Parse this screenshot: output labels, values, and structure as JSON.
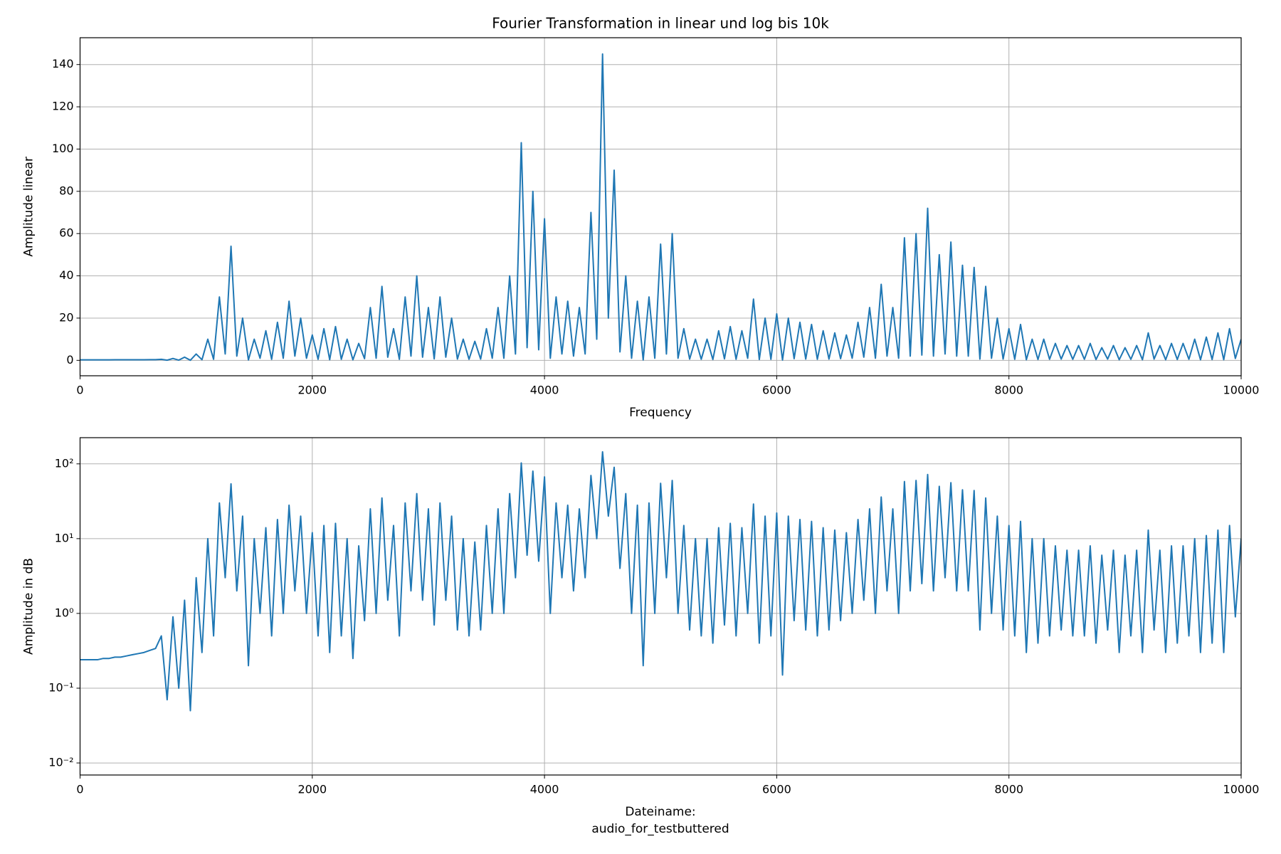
{
  "chart_data": [
    {
      "type": "line",
      "title": "Fourier Transformation in linear und log bis 10k",
      "xlabel": "Frequency",
      "ylabel": "Amplitude linear",
      "color": "#1f77b4",
      "grid": true,
      "yscale": "linear",
      "xlim": [
        0,
        10000
      ],
      "xticks": [
        0,
        2000,
        4000,
        6000,
        8000,
        10000
      ],
      "ylim": [
        -7.3,
        152.7
      ],
      "yticks": [
        0,
        20,
        40,
        60,
        80,
        100,
        120,
        140
      ],
      "x": [
        0,
        50,
        100,
        150,
        200,
        250,
        300,
        350,
        400,
        450,
        500,
        550,
        600,
        650,
        700,
        750,
        800,
        850,
        900,
        950,
        1000,
        1050,
        1100,
        1150,
        1200,
        1250,
        1300,
        1350,
        1400,
        1450,
        1500,
        1550,
        1600,
        1650,
        1700,
        1750,
        1800,
        1850,
        1900,
        1950,
        2000,
        2050,
        2100,
        2150,
        2200,
        2250,
        2300,
        2350,
        2400,
        2450,
        2500,
        2550,
        2600,
        2650,
        2700,
        2750,
        2800,
        2850,
        2900,
        2950,
        3000,
        3050,
        3100,
        3150,
        3200,
        3250,
        3300,
        3350,
        3400,
        3450,
        3500,
        3550,
        3600,
        3650,
        3700,
        3750,
        3800,
        3850,
        3900,
        3950,
        4000,
        4050,
        4100,
        4150,
        4200,
        4250,
        4300,
        4350,
        4400,
        4450,
        4500,
        4550,
        4600,
        4650,
        4700,
        4750,
        4800,
        4850,
        4900,
        4950,
        5000,
        5050,
        5100,
        5150,
        5200,
        5250,
        5300,
        5350,
        5400,
        5450,
        5500,
        5550,
        5600,
        5650,
        5700,
        5750,
        5800,
        5850,
        5900,
        5950,
        6000,
        6050,
        6100,
        6150,
        6200,
        6250,
        6300,
        6350,
        6400,
        6450,
        6500,
        6550,
        6600,
        6650,
        6700,
        6750,
        6800,
        6850,
        6900,
        6950,
        7000,
        7050,
        7100,
        7150,
        7200,
        7250,
        7300,
        7350,
        7400,
        7450,
        7500,
        7550,
        7600,
        7650,
        7700,
        7750,
        7800,
        7850,
        7900,
        7950,
        8000,
        8050,
        8100,
        8150,
        8200,
        8250,
        8300,
        8350,
        8400,
        8450,
        8500,
        8550,
        8600,
        8650,
        8700,
        8750,
        8800,
        8850,
        8900,
        8950,
        9000,
        9050,
        9100,
        9150,
        9200,
        9250,
        9300,
        9350,
        9400,
        9450,
        9500,
        9550,
        9600,
        9650,
        9700,
        9750,
        9800,
        9850,
        9900,
        9950,
        10000
      ],
      "values": [
        0.24,
        0.24,
        0.24,
        0.24,
        0.25,
        0.25,
        0.26,
        0.26,
        0.27,
        0.28,
        0.29,
        0.3,
        0.32,
        0.34,
        0.5,
        0.07,
        0.9,
        0.1,
        1.5,
        0.05,
        3,
        0.3,
        10,
        0.5,
        30,
        3,
        54,
        2,
        20,
        0.2,
        10,
        1,
        14,
        0.5,
        18,
        1,
        28,
        2,
        20,
        1,
        12,
        0.5,
        15,
        0.3,
        16,
        0.5,
        10,
        0.25,
        8,
        0.8,
        25,
        1,
        35,
        1.5,
        15,
        0.5,
        30,
        2,
        40,
        1.5,
        25,
        0.7,
        30,
        1.5,
        20,
        0.6,
        10,
        0.5,
        9,
        0.6,
        15,
        1,
        25,
        1,
        40,
        3,
        103,
        6,
        80,
        5,
        67,
        1,
        30,
        3,
        28,
        2,
        25,
        3,
        70,
        10,
        145,
        20,
        90,
        4,
        40,
        1,
        28,
        0.2,
        30,
        1,
        55,
        3,
        60,
        1,
        15,
        0.6,
        10,
        0.5,
        10,
        0.4,
        14,
        0.7,
        16,
        0.5,
        14,
        1,
        29,
        0.4,
        20,
        0.5,
        22,
        0.15,
        20,
        0.8,
        18,
        0.6,
        17,
        0.5,
        14,
        0.6,
        13,
        0.8,
        12,
        1,
        18,
        1.5,
        25,
        1,
        36,
        2,
        25,
        1,
        58,
        2,
        60,
        2.5,
        72,
        2,
        50,
        3,
        56,
        2,
        45,
        2,
        44,
        0.6,
        35,
        1,
        20,
        0.6,
        15,
        0.5,
        17,
        0.3,
        10,
        0.4,
        10,
        0.5,
        8,
        0.6,
        7,
        0.5,
        7,
        0.5,
        8,
        0.4,
        6,
        0.6,
        7,
        0.3,
        6,
        0.5,
        7,
        0.3,
        13,
        0.6,
        7,
        0.3,
        8,
        0.4,
        8,
        0.5,
        10,
        0.3,
        11,
        0.4,
        13,
        0.3,
        15,
        0.9,
        10
      ]
    },
    {
      "type": "line",
      "xlabel": "Dateiname:\naudio_for_testbuttered",
      "ylabel": "Amplitude in dB",
      "color": "#1f77b4",
      "grid": true,
      "yscale": "log",
      "xlim": [
        0,
        10000
      ],
      "xticks": [
        0,
        2000,
        4000,
        6000,
        8000,
        10000
      ],
      "ylim": [
        0.0069,
        224
      ],
      "yticks": [
        {
          "value": 0.01,
          "label": "10⁻²"
        },
        {
          "value": 0.1,
          "label": "10⁻¹"
        },
        {
          "value": 1,
          "label": "10⁰"
        },
        {
          "value": 10,
          "label": "10¹"
        },
        {
          "value": 100,
          "label": "10²"
        }
      ],
      "x": [
        0,
        50,
        100,
        150,
        200,
        250,
        300,
        350,
        400,
        450,
        500,
        550,
        600,
        650,
        700,
        750,
        800,
        850,
        900,
        950,
        1000,
        1050,
        1100,
        1150,
        1200,
        1250,
        1300,
        1350,
        1400,
        1450,
        1500,
        1550,
        1600,
        1650,
        1700,
        1750,
        1800,
        1850,
        1900,
        1950,
        2000,
        2050,
        2100,
        2150,
        2200,
        2250,
        2300,
        2350,
        2400,
        2450,
        2500,
        2550,
        2600,
        2650,
        2700,
        2750,
        2800,
        2850,
        2900,
        2950,
        3000,
        3050,
        3100,
        3150,
        3200,
        3250,
        3300,
        3350,
        3400,
        3450,
        3500,
        3550,
        3600,
        3650,
        3700,
        3750,
        3800,
        3850,
        3900,
        3950,
        4000,
        4050,
        4100,
        4150,
        4200,
        4250,
        4300,
        4350,
        4400,
        4450,
        4500,
        4550,
        4600,
        4650,
        4700,
        4750,
        4800,
        4850,
        4900,
        4950,
        5000,
        5050,
        5100,
        5150,
        5200,
        5250,
        5300,
        5350,
        5400,
        5450,
        5500,
        5550,
        5600,
        5650,
        5700,
        5750,
        5800,
        5850,
        5900,
        5950,
        6000,
        6050,
        6100,
        6150,
        6200,
        6250,
        6300,
        6350,
        6400,
        6450,
        6500,
        6550,
        6600,
        6650,
        6700,
        6750,
        6800,
        6850,
        6900,
        6950,
        7000,
        7050,
        7100,
        7150,
        7200,
        7250,
        7300,
        7350,
        7400,
        7450,
        7500,
        7550,
        7600,
        7650,
        7700,
        7750,
        7800,
        7850,
        7900,
        7950,
        8000,
        8050,
        8100,
        8150,
        8200,
        8250,
        8300,
        8350,
        8400,
        8450,
        8500,
        8550,
        8600,
        8650,
        8700,
        8750,
        8800,
        8850,
        8900,
        8950,
        9000,
        9050,
        9100,
        9150,
        9200,
        9250,
        9300,
        9350,
        9400,
        9450,
        9500,
        9550,
        9600,
        9650,
        9700,
        9750,
        9800,
        9850,
        9900,
        9950,
        10000
      ],
      "values": [
        0.24,
        0.24,
        0.24,
        0.24,
        0.25,
        0.25,
        0.26,
        0.26,
        0.27,
        0.28,
        0.29,
        0.3,
        0.32,
        0.34,
        0.5,
        0.07,
        0.9,
        0.1,
        1.5,
        0.05,
        3,
        0.3,
        10,
        0.5,
        30,
        3,
        54,
        2,
        20,
        0.2,
        10,
        1,
        14,
        0.5,
        18,
        1,
        28,
        2,
        20,
        1,
        12,
        0.5,
        15,
        0.3,
        16,
        0.5,
        10,
        0.25,
        8,
        0.8,
        25,
        1,
        35,
        1.5,
        15,
        0.5,
        30,
        2,
        40,
        1.5,
        25,
        0.7,
        30,
        1.5,
        20,
        0.6,
        10,
        0.5,
        9,
        0.6,
        15,
        1,
        25,
        1,
        40,
        3,
        103,
        6,
        80,
        5,
        67,
        1,
        30,
        3,
        28,
        2,
        25,
        3,
        70,
        10,
        145,
        20,
        90,
        4,
        40,
        1,
        28,
        0.2,
        30,
        1,
        55,
        3,
        60,
        1,
        15,
        0.6,
        10,
        0.5,
        10,
        0.4,
        14,
        0.7,
        16,
        0.5,
        14,
        1,
        29,
        0.4,
        20,
        0.5,
        22,
        0.15,
        20,
        0.8,
        18,
        0.6,
        17,
        0.5,
        14,
        0.6,
        13,
        0.8,
        12,
        1,
        18,
        1.5,
        25,
        1,
        36,
        2,
        25,
        1,
        58,
        2,
        60,
        2.5,
        72,
        2,
        50,
        3,
        56,
        2,
        45,
        2,
        44,
        0.6,
        35,
        1,
        20,
        0.6,
        15,
        0.5,
        17,
        0.3,
        10,
        0.4,
        10,
        0.5,
        8,
        0.6,
        7,
        0.5,
        7,
        0.5,
        8,
        0.4,
        6,
        0.6,
        7,
        0.3,
        6,
        0.5,
        7,
        0.3,
        13,
        0.6,
        7,
        0.3,
        8,
        0.4,
        8,
        0.5,
        10,
        0.3,
        11,
        0.4,
        13,
        0.3,
        15,
        0.9,
        10
      ]
    }
  ]
}
